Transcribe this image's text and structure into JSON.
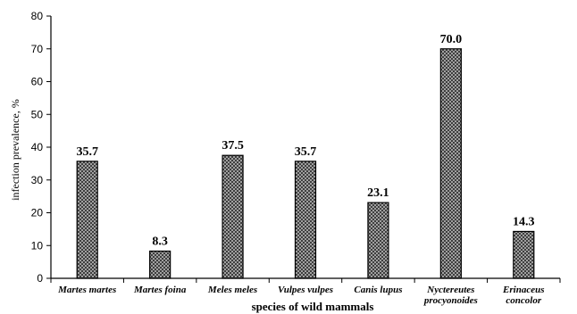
{
  "chart_data": {
    "type": "bar",
    "categories": [
      [
        "Martes martes"
      ],
      [
        "Martes foina"
      ],
      [
        "Meles meles"
      ],
      [
        "Vulpes vulpes"
      ],
      [
        "Canis lupus"
      ],
      [
        "Nyctereutes",
        "procyonoides"
      ],
      [
        "Erinaceus",
        "concolor"
      ]
    ],
    "values": [
      35.7,
      8.3,
      37.5,
      35.7,
      23.1,
      70.0,
      14.3
    ],
    "data_labels": [
      "35.7",
      "8.3",
      "37.5",
      "35.7",
      "23.1",
      "70.0",
      "14.3"
    ],
    "title": "",
    "xlabel": "species of wild mammals",
    "ylabel": "infection prevalence, %",
    "ylim": [
      0,
      80
    ],
    "yticks": [
      0,
      10,
      20,
      30,
      40,
      50,
      60,
      70,
      80
    ],
    "grid": false,
    "bar_pattern": "crosshatch",
    "colors": {
      "bar_fill": "#bdbdbd",
      "bar_hatch": "#2a2a2a",
      "axis": "#000000"
    }
  }
}
